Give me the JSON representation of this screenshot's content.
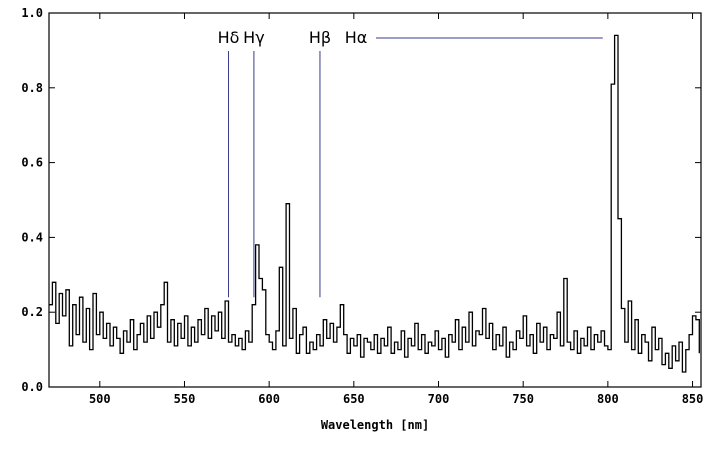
{
  "chart_data": {
    "type": "line",
    "title": "",
    "xlabel": "Wavelength [nm]",
    "ylabel": "",
    "xlim": [
      470,
      855
    ],
    "ylim": [
      0.0,
      1.0
    ],
    "xticks": [
      500,
      550,
      600,
      650,
      700,
      750,
      800,
      850
    ],
    "yticks": [
      0.0,
      0.2,
      0.4,
      0.6,
      0.8,
      1.0
    ],
    "xtick_labels": [
      "500",
      "550",
      "600",
      "650",
      "700",
      "750",
      "800",
      "850"
    ],
    "ytick_labels": [
      "0.0",
      "0.2",
      "0.4",
      "0.6",
      "0.8",
      "1.0"
    ],
    "grid": false,
    "line_color": "#000000",
    "annotation_color": "#3a3a8c",
    "annotations": [
      {
        "label": "Hδ",
        "x": 576
      },
      {
        "label": "Hγ",
        "x": 591
      },
      {
        "label": "Hβ",
        "x": 630
      },
      {
        "label": "Hα",
        "x": 797
      }
    ],
    "series": [
      {
        "x": [
          470,
          472,
          474,
          476,
          478,
          480,
          482,
          484,
          486,
          488,
          490,
          492,
          494,
          496,
          498,
          500,
          502,
          504,
          506,
          508,
          510,
          512,
          514,
          516,
          518,
          520,
          522,
          524,
          526,
          528,
          530,
          532,
          534,
          536,
          538,
          540,
          542,
          544,
          546,
          548,
          550,
          552,
          554,
          556,
          558,
          560,
          562,
          564,
          566,
          568,
          570,
          572,
          574,
          576,
          578,
          580,
          582,
          584,
          586,
          588,
          590,
          592,
          594,
          596,
          598,
          600,
          602,
          604,
          606,
          608,
          610,
          612,
          614,
          616,
          618,
          620,
          622,
          624,
          626,
          628,
          630,
          632,
          634,
          636,
          638,
          640,
          642,
          644,
          646,
          648,
          650,
          652,
          654,
          656,
          658,
          660,
          662,
          664,
          666,
          668,
          670,
          672,
          674,
          676,
          678,
          680,
          682,
          684,
          686,
          688,
          690,
          692,
          694,
          696,
          698,
          700,
          702,
          704,
          706,
          708,
          710,
          712,
          714,
          716,
          718,
          720,
          722,
          724,
          726,
          728,
          730,
          732,
          734,
          736,
          738,
          740,
          742,
          744,
          746,
          748,
          750,
          752,
          754,
          756,
          758,
          760,
          762,
          764,
          766,
          768,
          770,
          772,
          774,
          776,
          778,
          780,
          782,
          784,
          786,
          788,
          790,
          792,
          794,
          796,
          798,
          800,
          802,
          804,
          806,
          808,
          810,
          812,
          814,
          816,
          818,
          820,
          822,
          824,
          826,
          828,
          830,
          832,
          834,
          836,
          838,
          840,
          842,
          844,
          846,
          848,
          850,
          852,
          854
        ],
        "values": [
          0.22,
          0.28,
          0.17,
          0.25,
          0.19,
          0.26,
          0.11,
          0.22,
          0.14,
          0.24,
          0.12,
          0.21,
          0.1,
          0.25,
          0.14,
          0.2,
          0.13,
          0.17,
          0.11,
          0.16,
          0.13,
          0.09,
          0.15,
          0.12,
          0.18,
          0.1,
          0.14,
          0.17,
          0.12,
          0.19,
          0.13,
          0.2,
          0.16,
          0.22,
          0.28,
          0.12,
          0.18,
          0.11,
          0.17,
          0.13,
          0.19,
          0.11,
          0.16,
          0.12,
          0.18,
          0.14,
          0.21,
          0.13,
          0.19,
          0.15,
          0.2,
          0.13,
          0.23,
          0.12,
          0.14,
          0.11,
          0.13,
          0.1,
          0.15,
          0.12,
          0.22,
          0.38,
          0.29,
          0.26,
          0.14,
          0.12,
          0.1,
          0.15,
          0.32,
          0.11,
          0.49,
          0.13,
          0.21,
          0.09,
          0.14,
          0.16,
          0.09,
          0.12,
          0.1,
          0.14,
          0.11,
          0.18,
          0.13,
          0.17,
          0.12,
          0.16,
          0.22,
          0.14,
          0.09,
          0.13,
          0.11,
          0.14,
          0.08,
          0.13,
          0.12,
          0.1,
          0.14,
          0.09,
          0.13,
          0.11,
          0.16,
          0.09,
          0.12,
          0.1,
          0.15,
          0.08,
          0.13,
          0.11,
          0.17,
          0.1,
          0.14,
          0.09,
          0.12,
          0.11,
          0.15,
          0.1,
          0.13,
          0.08,
          0.14,
          0.12,
          0.18,
          0.1,
          0.16,
          0.12,
          0.2,
          0.11,
          0.15,
          0.14,
          0.21,
          0.13,
          0.17,
          0.1,
          0.14,
          0.11,
          0.16,
          0.08,
          0.12,
          0.1,
          0.15,
          0.13,
          0.19,
          0.11,
          0.14,
          0.09,
          0.17,
          0.12,
          0.16,
          0.1,
          0.14,
          0.13,
          0.2,
          0.11,
          0.29,
          0.12,
          0.1,
          0.15,
          0.09,
          0.13,
          0.11,
          0.16,
          0.1,
          0.14,
          0.12,
          0.15,
          0.11,
          0.1,
          0.81,
          0.94,
          0.45,
          0.21,
          0.12,
          0.23,
          0.1,
          0.18,
          0.09,
          0.14,
          0.12,
          0.07,
          0.16,
          0.1,
          0.13,
          0.06,
          0.09,
          0.05,
          0.11,
          0.07,
          0.12,
          0.04,
          0.1,
          0.14,
          0.19,
          0.18,
          0.09
        ]
      }
    ]
  }
}
